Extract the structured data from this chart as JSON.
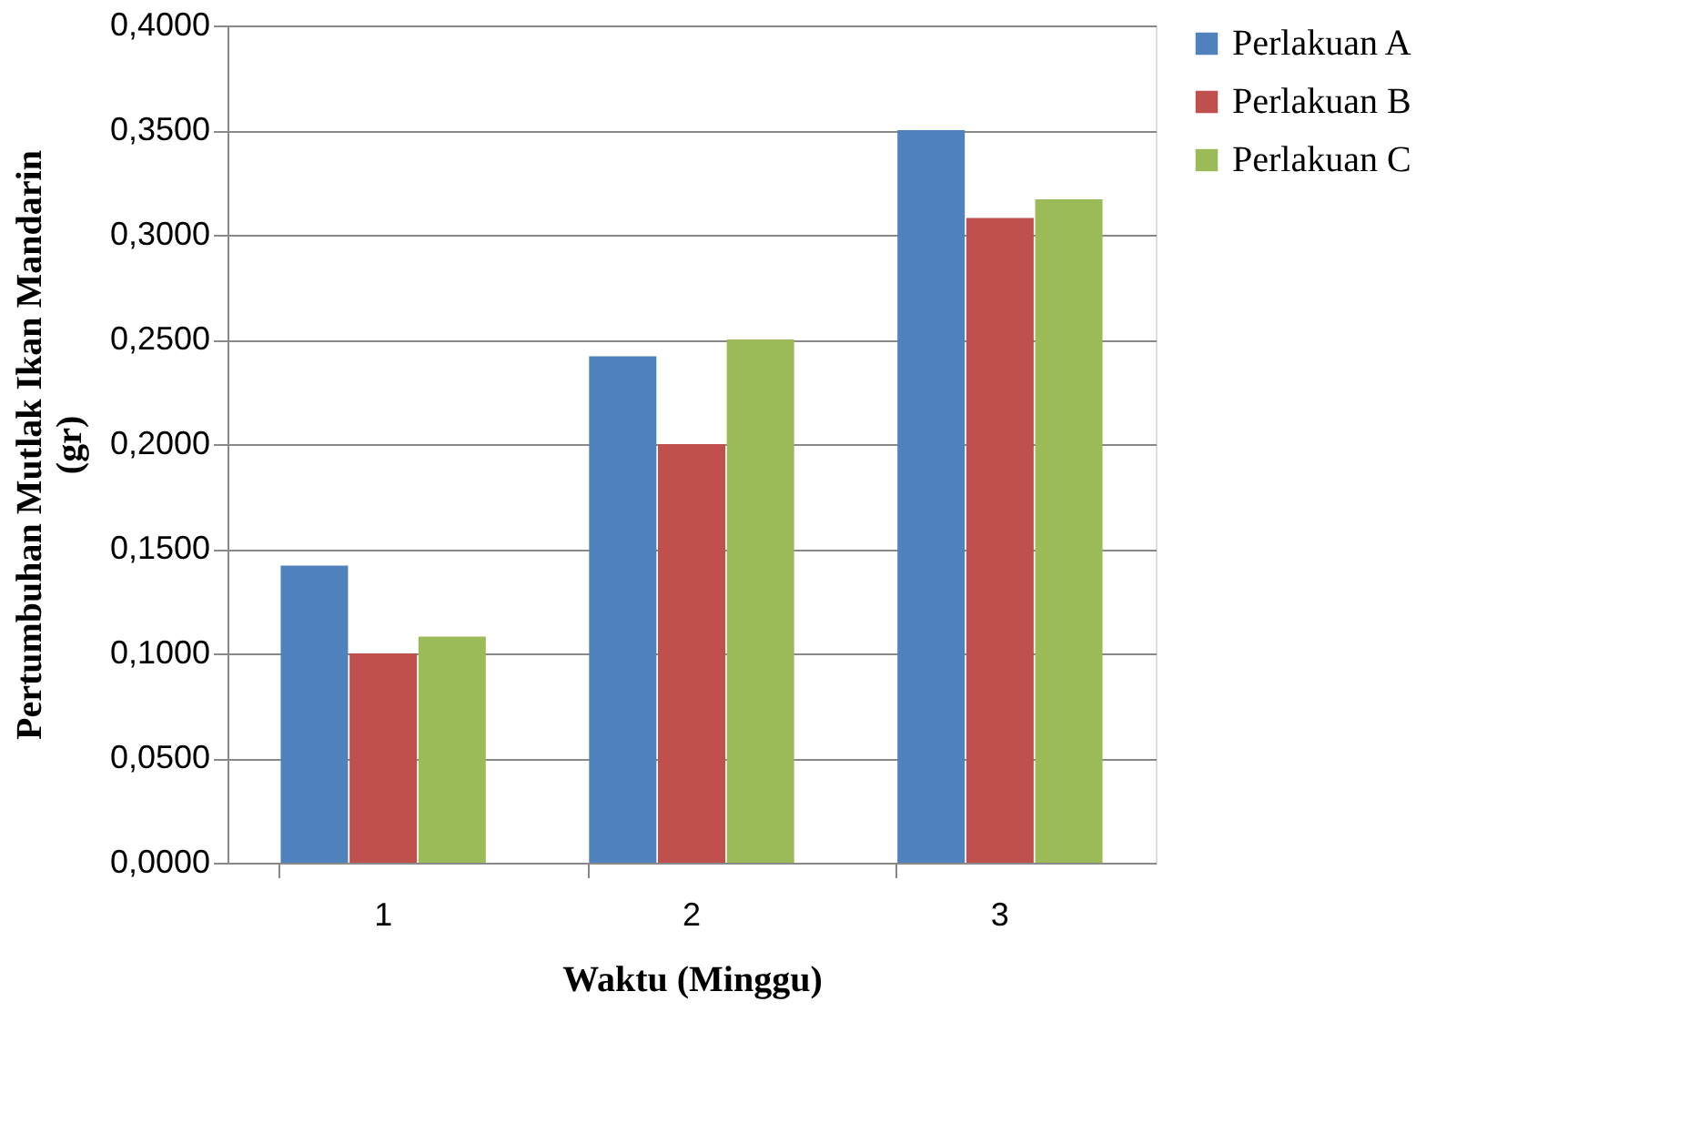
{
  "chart_data": {
    "type": "bar",
    "xlabel": "Waktu (Minggu)",
    "ylabel": "Pertumbuhan Mutlak Ikan Mandarin (gr)",
    "categories": [
      "1",
      "2",
      "3"
    ],
    "series": [
      {
        "name": "Perlakuan A",
        "color": "#4f81bd",
        "values": [
          0.142,
          0.242,
          0.35
        ]
      },
      {
        "name": "Perlakuan B",
        "color": "#c0504d",
        "values": [
          0.1,
          0.2,
          0.308
        ]
      },
      {
        "name": "Perlakuan C",
        "color": "#9bbb59",
        "values": [
          0.108,
          0.25,
          0.317
        ]
      }
    ],
    "ylim": [
      0,
      0.4
    ],
    "yticks": [
      {
        "value": 0,
        "label": "0,0000"
      },
      {
        "value": 0.05,
        "label": "0,0500"
      },
      {
        "value": 0.1,
        "label": "0,1000"
      },
      {
        "value": 0.15,
        "label": "0,1500"
      },
      {
        "value": 0.2,
        "label": "0,2000"
      },
      {
        "value": 0.25,
        "label": "0,2500"
      },
      {
        "value": 0.3,
        "label": "0,3000"
      },
      {
        "value": 0.35,
        "label": "0,3500"
      },
      {
        "value": 0.4,
        "label": "0,4000"
      }
    ],
    "grid": "y",
    "legend": "right"
  }
}
